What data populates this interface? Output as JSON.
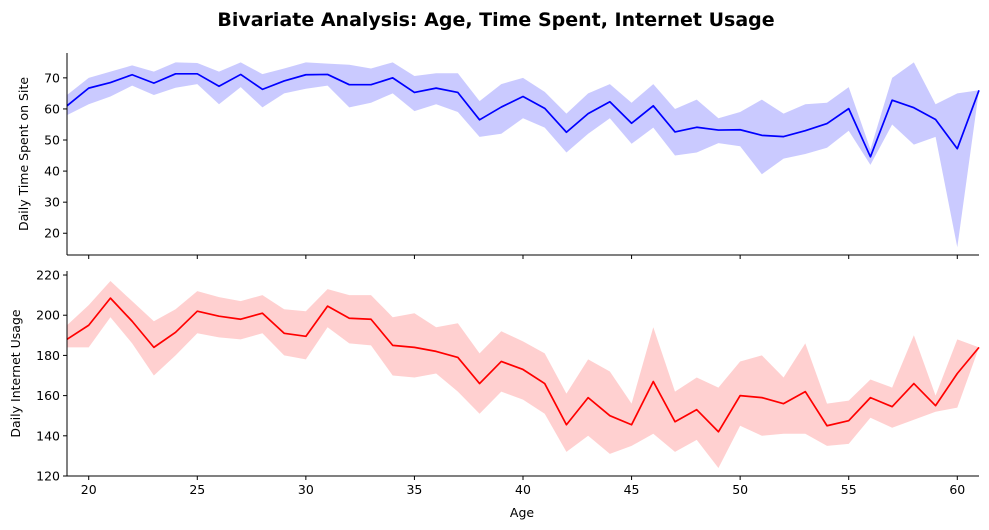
{
  "chart_data": {
    "type": "line",
    "title": "Bivariate Analysis: Age, Time Spent, Internet Usage",
    "xlabel": "Age",
    "xlim": [
      19,
      61
    ],
    "xticks": [
      20,
      25,
      30,
      35,
      40,
      45,
      50,
      55,
      60
    ],
    "x": [
      19,
      20,
      21,
      22,
      23,
      24,
      25,
      26,
      27,
      28,
      29,
      30,
      31,
      32,
      33,
      34,
      35,
      36,
      37,
      38,
      39,
      40,
      41,
      42,
      43,
      44,
      45,
      46,
      47,
      48,
      49,
      50,
      51,
      52,
      53,
      54,
      55,
      56,
      57,
      58,
      59,
      60,
      61
    ],
    "panels": [
      {
        "ylabel": "Daily Time Spent on Site",
        "ylim": [
          13,
          78
        ],
        "yticks": [
          20,
          30,
          40,
          50,
          60,
          70
        ],
        "color": "#0000ff",
        "fill_color": "#7b7bff",
        "mean": [
          61.0,
          66.7,
          68.5,
          71.0,
          68.3,
          71.3,
          71.3,
          67.3,
          71.1,
          66.3,
          69.0,
          71.0,
          71.1,
          67.8,
          67.8,
          70.0,
          65.3,
          66.7,
          65.3,
          56.5,
          60.6,
          64.0,
          60.2,
          52.5,
          58.5,
          62.3,
          55.4,
          61.0,
          52.6,
          54.1,
          53.2,
          53.3,
          51.5,
          51.1,
          53.0,
          55.3,
          60.1,
          44.6,
          62.8,
          60.4,
          56.6,
          47.2,
          66.0
        ],
        "upper": [
          64.5,
          70.0,
          72.0,
          74.0,
          72.0,
          75.0,
          74.8,
          72.0,
          75.0,
          71.2,
          73.0,
          75.0,
          74.6,
          74.2,
          73.0,
          75.0,
          70.6,
          71.5,
          71.5,
          62.5,
          68.0,
          70.0,
          65.5,
          58.5,
          65.0,
          68.0,
          62.0,
          68.0,
          60.0,
          63.0,
          57.0,
          59.0,
          63.0,
          58.5,
          61.5,
          62.0,
          67.0,
          47.0,
          70.0,
          75.0,
          61.5,
          65.0,
          66.0
        ],
        "lower": [
          58.0,
          61.5,
          64.0,
          67.5,
          64.5,
          66.8,
          68.0,
          61.5,
          67.0,
          60.5,
          65.0,
          66.5,
          67.5,
          60.5,
          62.0,
          65.0,
          59.3,
          61.5,
          59.0,
          51.0,
          52.0,
          57.0,
          54.0,
          46.0,
          52.0,
          57.0,
          48.8,
          54.0,
          45.0,
          46.0,
          49.0,
          48.0,
          39.0,
          44.0,
          45.5,
          47.5,
          53.0,
          42.0,
          55.0,
          48.5,
          51.0,
          15.5,
          66.0
        ]
      },
      {
        "ylabel": "Daily Internet Usage",
        "ylim": [
          120,
          222
        ],
        "yticks": [
          120,
          140,
          160,
          180,
          200,
          220
        ],
        "color": "#ff0000",
        "fill_color": "#ff8a8a",
        "mean": [
          188.0,
          195.0,
          208.5,
          197.0,
          184.0,
          191.5,
          202.0,
          199.5,
          198.0,
          201.0,
          191.0,
          189.5,
          204.5,
          198.5,
          198.0,
          185.0,
          184.0,
          182.0,
          179.0,
          166.0,
          177.0,
          173.0,
          166.0,
          145.5,
          159.0,
          150.0,
          145.5,
          167.0,
          147.0,
          153.0,
          142.0,
          160.0,
          159.0,
          156.0,
          162.0,
          145.0,
          147.5,
          159.0,
          154.5,
          166.0,
          155.0,
          171.0,
          184.0
        ],
        "upper": [
          195.0,
          205.0,
          217.0,
          207.0,
          197.0,
          203.0,
          212.0,
          209.0,
          207.0,
          210.0,
          203.0,
          202.0,
          213.0,
          210.0,
          210.0,
          199.0,
          201.0,
          194.0,
          196.0,
          181.0,
          192.0,
          187.0,
          181.0,
          161.0,
          178.0,
          172.0,
          156.0,
          194.0,
          162.0,
          169.0,
          164.0,
          177.0,
          180.0,
          169.0,
          186.0,
          156.0,
          157.5,
          168.0,
          164.0,
          190.0,
          160.0,
          188.0,
          184.0
        ],
        "lower": [
          184.0,
          184.0,
          199.0,
          186.0,
          170.0,
          180.0,
          191.0,
          189.0,
          188.0,
          191.0,
          180.0,
          178.0,
          194.0,
          186.0,
          185.0,
          170.0,
          169.0,
          171.0,
          162.0,
          151.0,
          162.0,
          158.0,
          151.0,
          132.0,
          140.0,
          131.0,
          135.0,
          141.0,
          132.0,
          138.0,
          124.0,
          145.0,
          140.0,
          141.0,
          141.0,
          135.0,
          136.0,
          149.0,
          144.0,
          148.0,
          152.0,
          154.0,
          184.0
        ]
      }
    ]
  }
}
